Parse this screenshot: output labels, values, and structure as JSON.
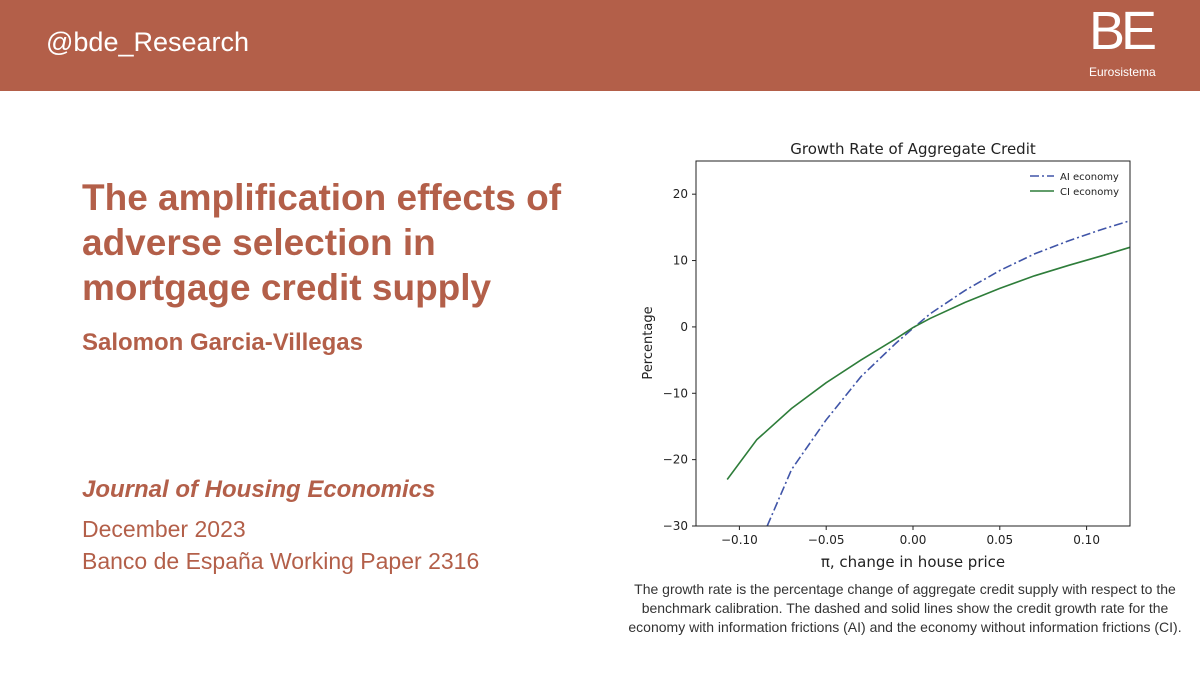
{
  "header": {
    "handle": "@bde_Research",
    "logo_mark": "BE",
    "logo_sub": "Eurosistema",
    "bg_color": "#b35f49"
  },
  "paper": {
    "title": "The amplification effects of adverse selection in mortgage credit supply",
    "author": "Salomon Garcia-Villegas",
    "journal": "Journal of Housing Economics",
    "date": "December 2023",
    "working_paper": "Banco de España Working Paper 2316",
    "accent_color": "#b35f49"
  },
  "caption": "The growth rate is the percentage change of aggregate credit supply with respect to the benchmark calibration. The dashed and solid lines show the credit growth rate for the economy with information frictions (AI) and the economy without information frictions (CI).",
  "chart_data": {
    "type": "line",
    "title": "Growth Rate of Aggregate Credit",
    "xlabel": "π, change in house price",
    "ylabel": "Percentage",
    "xlim": [
      -0.125,
      0.125
    ],
    "ylim": [
      -30,
      25
    ],
    "xticks": [
      -0.1,
      -0.05,
      0.0,
      0.05,
      0.1
    ],
    "xtick_labels": [
      "−0.10",
      "−0.05",
      "0.00",
      "0.05",
      "0.10"
    ],
    "yticks": [
      20,
      10,
      0,
      -10,
      -20,
      -30
    ],
    "ytick_labels": [
      "20",
      "10",
      "0",
      "−10",
      "−20",
      "−30"
    ],
    "grid": false,
    "legend_position": "top-right",
    "series": [
      {
        "name": "AI economy",
        "color": "#4055a8",
        "style": "dashdot",
        "x": [
          -0.084,
          -0.07,
          -0.05,
          -0.03,
          -0.01,
          0.0,
          0.01,
          0.03,
          0.05,
          0.07,
          0.09,
          0.11,
          0.125
        ],
        "y": [
          -30.0,
          -21.5,
          -14.0,
          -7.5,
          -2.5,
          -0.2,
          2.0,
          5.5,
          8.5,
          11.0,
          13.0,
          14.8,
          16.0
        ]
      },
      {
        "name": "CI economy",
        "color": "#2e7d3a",
        "style": "solid",
        "x": [
          -0.107,
          -0.09,
          -0.07,
          -0.05,
          -0.03,
          -0.01,
          0.0,
          0.01,
          0.03,
          0.05,
          0.07,
          0.09,
          0.11,
          0.125
        ],
        "y": [
          -23.0,
          -17.0,
          -12.3,
          -8.4,
          -5.0,
          -1.8,
          -0.1,
          1.3,
          3.7,
          5.8,
          7.7,
          9.3,
          10.8,
          12.0
        ]
      }
    ]
  }
}
